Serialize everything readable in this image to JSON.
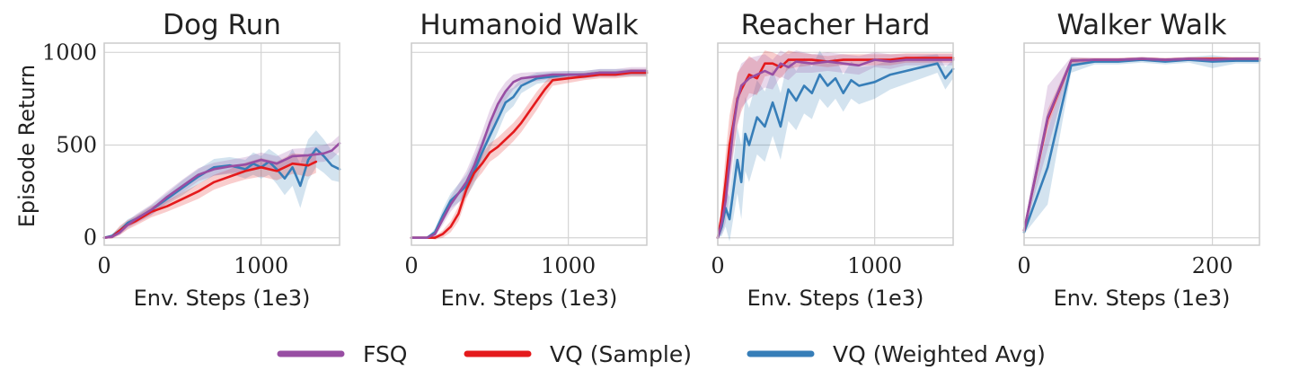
{
  "chart_data": {
    "type": "line",
    "ylabel": "Episode Return",
    "legend": {
      "position": "bottom-center",
      "entries": [
        {
          "name": "FSQ",
          "color": "#984ea3"
        },
        {
          "name": "VQ (Sample)",
          "color": "#e41a1c"
        },
        {
          "name": "VQ (Weighted Avg)",
          "color": "#377eb8"
        }
      ]
    },
    "panels": [
      {
        "title": "Dog Run",
        "xlabel": "Env. Steps (1e3)",
        "xlim": [
          0,
          1500
        ],
        "ylim": [
          -40,
          1050
        ],
        "xticks": [
          0,
          1000
        ],
        "xtick_labels": [
          "0",
          "1000"
        ],
        "yticks": [
          0,
          500,
          1000
        ],
        "ytick_labels": [
          "0",
          "500",
          "1000"
        ],
        "show_yticklabels": true,
        "show_ylabel": true,
        "series": [
          {
            "name": "FSQ",
            "x": [
              0,
              50,
              100,
              150,
              200,
              300,
              400,
              500,
              600,
              700,
              800,
              900,
              1000,
              1100,
              1200,
              1300,
              1400,
              1450,
              1500
            ],
            "y": [
              0,
              5,
              30,
              70,
              100,
              150,
              220,
              280,
              340,
              370,
              385,
              395,
              420,
              400,
              440,
              445,
              455,
              470,
              510
            ],
            "spread": [
              0,
              5,
              15,
              20,
              25,
              30,
              30,
              35,
              35,
              35,
              35,
              40,
              40,
              40,
              40,
              40,
              45,
              45,
              45
            ]
          },
          {
            "name": "VQ (Sample)",
            "x": [
              0,
              50,
              100,
              150,
              200,
              300,
              400,
              500,
              600,
              700,
              800,
              900,
              1000,
              1100,
              1200,
              1300,
              1350
            ],
            "y": [
              0,
              5,
              40,
              70,
              90,
              140,
              170,
              210,
              250,
              300,
              330,
              360,
              380,
              360,
              400,
              390,
              410
            ],
            "spread": [
              0,
              10,
              25,
              25,
              25,
              30,
              30,
              35,
              40,
              40,
              40,
              45,
              50,
              50,
              55,
              60,
              60
            ]
          },
          {
            "name": "VQ (Weighted Avg)",
            "x": [
              0,
              50,
              100,
              150,
              200,
              300,
              400,
              500,
              600,
              700,
              800,
              900,
              950,
              1000,
              1050,
              1100,
              1150,
              1200,
              1250,
              1300,
              1350,
              1400,
              1450,
              1500
            ],
            "y": [
              0,
              10,
              40,
              80,
              100,
              150,
              210,
              270,
              330,
              380,
              390,
              370,
              400,
              380,
              410,
              370,
              320,
              380,
              280,
              420,
              480,
              440,
              390,
              370
            ],
            "spread": [
              0,
              10,
              20,
              20,
              20,
              25,
              30,
              40,
              40,
              45,
              45,
              50,
              60,
              60,
              70,
              80,
              90,
              100,
              120,
              110,
              100,
              90,
              80,
              70
            ]
          }
        ]
      },
      {
        "title": "Humanoid Walk",
        "xlabel": "Env. Steps (1e3)",
        "xlim": [
          0,
          1500
        ],
        "ylim": [
          -40,
          1050
        ],
        "xticks": [
          0,
          1000
        ],
        "xtick_labels": [
          "0",
          "1000"
        ],
        "yticks": [
          0,
          500,
          1000
        ],
        "ytick_labels": [
          "0",
          "500",
          "1000"
        ],
        "show_yticklabels": false,
        "show_ylabel": false,
        "series": [
          {
            "name": "FSQ",
            "x": [
              0,
              100,
              150,
              200,
              250,
              300,
              350,
              400,
              450,
              500,
              550,
              600,
              650,
              700,
              800,
              900,
              1000,
              1100,
              1200,
              1300,
              1400,
              1500
            ],
            "y": [
              0,
              0,
              20,
              100,
              180,
              240,
              300,
              390,
              500,
              620,
              720,
              790,
              840,
              860,
              870,
              880,
              880,
              880,
              890,
              890,
              900,
              900
            ],
            "spread": [
              0,
              0,
              15,
              30,
              40,
              50,
              60,
              70,
              70,
              70,
              60,
              50,
              40,
              30,
              25,
              20,
              20,
              20,
              20,
              20,
              20,
              20
            ]
          },
          {
            "name": "VQ (Sample)",
            "x": [
              0,
              100,
              150,
              200,
              250,
              300,
              350,
              400,
              450,
              500,
              550,
              600,
              650,
              700,
              750,
              800,
              850,
              900,
              1000,
              1100,
              1200,
              1300,
              1400,
              1500
            ],
            "y": [
              0,
              0,
              0,
              20,
              60,
              130,
              260,
              350,
              400,
              460,
              490,
              530,
              570,
              620,
              680,
              740,
              800,
              850,
              860,
              870,
              880,
              880,
              890,
              890
            ],
            "spread": [
              0,
              0,
              10,
              20,
              30,
              40,
              50,
              50,
              50,
              50,
              50,
              50,
              50,
              50,
              50,
              50,
              40,
              30,
              25,
              20,
              20,
              20,
              20,
              20
            ]
          },
          {
            "name": "VQ (Weighted Avg)",
            "x": [
              0,
              100,
              150,
              200,
              250,
              300,
              350,
              400,
              450,
              500,
              550,
              600,
              650,
              700,
              800,
              900,
              1000,
              1100,
              1200,
              1300,
              1400,
              1500
            ],
            "y": [
              0,
              0,
              30,
              120,
              200,
              240,
              280,
              360,
              460,
              550,
              640,
              730,
              760,
              820,
              860,
              870,
              880,
              880,
              890,
              890,
              890,
              890
            ],
            "spread": [
              0,
              0,
              20,
              35,
              40,
              50,
              60,
              70,
              70,
              70,
              70,
              60,
              50,
              40,
              30,
              25,
              20,
              20,
              20,
              20,
              20,
              20
            ]
          }
        ]
      },
      {
        "title": "Reacher Hard",
        "xlabel": "Env. Steps (1e3)",
        "xlim": [
          0,
          1500
        ],
        "ylim": [
          -40,
          1050
        ],
        "xticks": [
          0,
          1000
        ],
        "xtick_labels": [
          "0",
          "1000"
        ],
        "yticks": [
          0,
          500,
          1000
        ],
        "ytick_labels": [
          "0",
          "500",
          "1000"
        ],
        "show_yticklabels": false,
        "show_ylabel": false,
        "series": [
          {
            "name": "FSQ",
            "x": [
              0,
              25,
              50,
              75,
              100,
              125,
              150,
              200,
              250,
              300,
              350,
              400,
              450,
              500,
              600,
              700,
              800,
              900,
              1000,
              1100,
              1200,
              1300,
              1400,
              1500
            ],
            "y": [
              0,
              80,
              200,
              400,
              600,
              740,
              820,
              860,
              880,
              900,
              880,
              940,
              920,
              950,
              940,
              950,
              940,
              930,
              960,
              950,
              960,
              960,
              960,
              960
            ],
            "spread": [
              0,
              60,
              120,
              150,
              150,
              140,
              120,
              110,
              100,
              90,
              80,
              70,
              70,
              60,
              50,
              50,
              50,
              50,
              40,
              40,
              30,
              30,
              30,
              30
            ]
          },
          {
            "name": "VQ (Sample)",
            "x": [
              0,
              25,
              50,
              75,
              100,
              125,
              150,
              200,
              250,
              300,
              350,
              400,
              450,
              500,
              600,
              700,
              800,
              900,
              1000,
              1100,
              1200,
              1300,
              1400,
              1500
            ],
            "y": [
              0,
              120,
              300,
              500,
              620,
              750,
              800,
              880,
              860,
              940,
              940,
              920,
              960,
              960,
              960,
              950,
              960,
              960,
              960,
              960,
              970,
              970,
              970,
              970
            ],
            "spread": [
              0,
              80,
              150,
              160,
              150,
              140,
              120,
              100,
              90,
              70,
              60,
              60,
              50,
              40,
              30,
              30,
              30,
              30,
              30,
              30,
              25,
              25,
              25,
              25
            ]
          },
          {
            "name": "VQ (Weighted Avg)",
            "x": [
              0,
              25,
              50,
              75,
              100,
              125,
              150,
              175,
              200,
              250,
              300,
              350,
              400,
              450,
              500,
              550,
              600,
              650,
              700,
              750,
              800,
              850,
              900,
              1000,
              1100,
              1200,
              1300,
              1400,
              1450,
              1500
            ],
            "y": [
              0,
              60,
              160,
              100,
              260,
              420,
              300,
              560,
              500,
              650,
              600,
              730,
              600,
              800,
              740,
              820,
              780,
              880,
              820,
              860,
              780,
              850,
              820,
              840,
              880,
              900,
              920,
              940,
              860,
              910
            ],
            "spread": [
              0,
              50,
              100,
              120,
              150,
              180,
              200,
              200,
              200,
              200,
              190,
              180,
              180,
              170,
              160,
              150,
              140,
              130,
              120,
              110,
              100,
              100,
              100,
              90,
              80,
              70,
              60,
              50,
              60,
              50
            ]
          }
        ]
      },
      {
        "title": "Walker Walk",
        "xlabel": "Env. Steps (1e3)",
        "xlim": [
          0,
          250
        ],
        "ylim": [
          -40,
          1050
        ],
        "xticks": [
          0,
          200
        ],
        "xtick_labels": [
          "0",
          "200"
        ],
        "yticks": [
          0,
          500,
          1000
        ],
        "ytick_labels": [
          "0",
          "500",
          "1000"
        ],
        "show_yticklabels": false,
        "show_ylabel": false,
        "series": [
          {
            "name": "FSQ",
            "x": [
              0,
              25,
              50,
              75,
              100,
              125,
              150,
              175,
              200,
              225,
              250
            ],
            "y": [
              40,
              650,
              955,
              960,
              960,
              965,
              960,
              965,
              960,
              965,
              965
            ],
            "spread": [
              10,
              170,
              20,
              10,
              10,
              10,
              10,
              10,
              10,
              10,
              10
            ]
          },
          {
            "name": "VQ (Sample)",
            "x": [
              0,
              25,
              50,
              75,
              100,
              125,
              150,
              175,
              200,
              225,
              250
            ],
            "y": [
              40,
              640,
              955,
              960,
              960,
              965,
              960,
              965,
              965,
              965,
              965
            ],
            "spread": [
              10,
              50,
              15,
              10,
              10,
              10,
              10,
              10,
              10,
              10,
              10
            ]
          },
          {
            "name": "VQ (Weighted Avg)",
            "x": [
              0,
              25,
              50,
              75,
              100,
              125,
              150,
              175,
              200,
              225,
              250
            ],
            "y": [
              30,
              380,
              930,
              950,
              950,
              960,
              950,
              960,
              950,
              955,
              955
            ],
            "spread": [
              10,
              200,
              40,
              15,
              15,
              15,
              15,
              15,
              35,
              15,
              15
            ]
          }
        ]
      }
    ]
  }
}
